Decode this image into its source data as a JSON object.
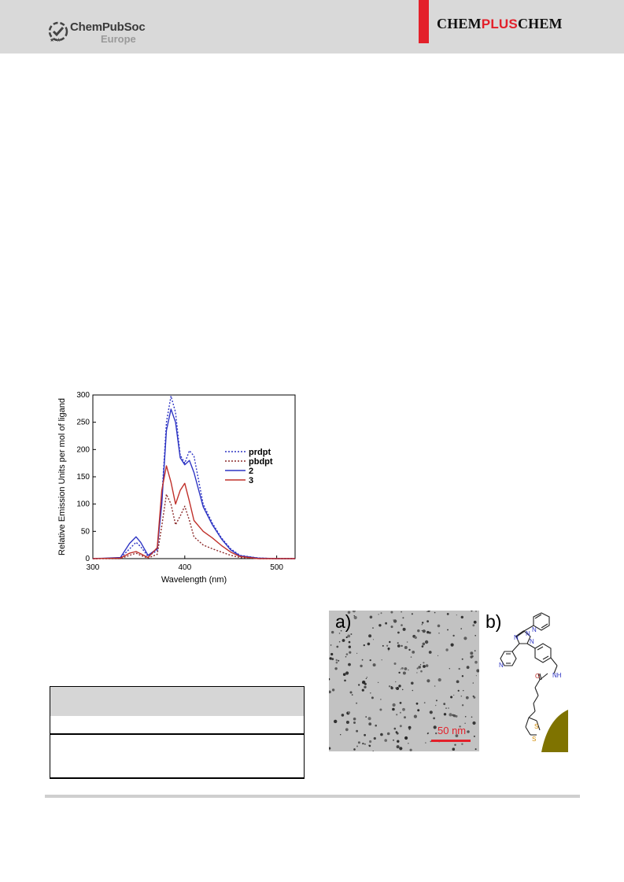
{
  "header": {
    "publisher_name": "ChemPubSoc",
    "publisher_sub": "Europe",
    "journal_part1": "CHEM",
    "journal_part2": "PLUS",
    "journal_part3": "CHEM",
    "brand_red": "#e3202a"
  },
  "figure_emission": {
    "chart_data": {
      "type": "line",
      "xlabel": "Wavelength (nm)",
      "ylabel": "Relative Emission Units per mol of ligand",
      "xlim": [
        300,
        520
      ],
      "ylim": [
        0,
        300
      ],
      "xticks": [
        300,
        400,
        500
      ],
      "yticks": [
        0,
        50,
        100,
        150,
        200,
        250,
        300
      ],
      "legend_position": "right",
      "series": [
        {
          "name": "prdpt",
          "style": "dotted",
          "color": "#2e35c4",
          "x": [
            300,
            330,
            340,
            347,
            352,
            360,
            370,
            375,
            380,
            385,
            390,
            395,
            400,
            405,
            410,
            420,
            430,
            440,
            450,
            460,
            480,
            500,
            520
          ],
          "y": [
            0,
            1,
            18,
            30,
            22,
            4,
            15,
            110,
            250,
            298,
            268,
            190,
            175,
            198,
            188,
            100,
            65,
            38,
            18,
            6,
            1,
            0,
            0
          ]
        },
        {
          "name": "pbdpt",
          "style": "dotted",
          "color": "#8b2a2a",
          "x": [
            300,
            330,
            340,
            347,
            352,
            360,
            370,
            375,
            380,
            385,
            390,
            395,
            400,
            405,
            410,
            420,
            430,
            440,
            450,
            460,
            480,
            500,
            520
          ],
          "y": [
            0,
            0,
            6,
            10,
            6,
            1,
            8,
            60,
            118,
            100,
            62,
            78,
            96,
            70,
            40,
            25,
            18,
            12,
            6,
            2,
            0,
            0,
            0
          ]
        },
        {
          "name": "2",
          "style": "solid",
          "color": "#2e35c4",
          "x": [
            300,
            330,
            340,
            347,
            352,
            360,
            370,
            375,
            380,
            385,
            390,
            395,
            400,
            405,
            410,
            420,
            430,
            440,
            450,
            460,
            480,
            500,
            520
          ],
          "y": [
            0,
            2,
            28,
            40,
            30,
            6,
            18,
            100,
            235,
            274,
            250,
            185,
            172,
            180,
            158,
            95,
            62,
            36,
            16,
            5,
            1,
            0,
            0
          ]
        },
        {
          "name": "3",
          "style": "solid",
          "color": "#c0302a",
          "x": [
            300,
            330,
            340,
            347,
            352,
            360,
            370,
            375,
            380,
            385,
            390,
            395,
            400,
            405,
            410,
            420,
            430,
            440,
            450,
            460,
            480,
            500,
            520
          ],
          "y": [
            0,
            1,
            10,
            13,
            9,
            2,
            20,
            125,
            170,
            140,
            100,
            125,
            138,
            105,
            70,
            50,
            38,
            24,
            12,
            4,
            0,
            0,
            0
          ]
        }
      ]
    }
  },
  "figure_tem": {
    "panel_a_label": "a)",
    "panel_b_label": "b)",
    "scale_label": "50 nm",
    "atoms": {
      "n1": "N",
      "n2": "N",
      "n3": "N",
      "n4": "N",
      "n5": "N",
      "nh": "NH",
      "o": "O",
      "s1": "S",
      "s2": "S"
    },
    "gold_color": "#7f7300"
  }
}
